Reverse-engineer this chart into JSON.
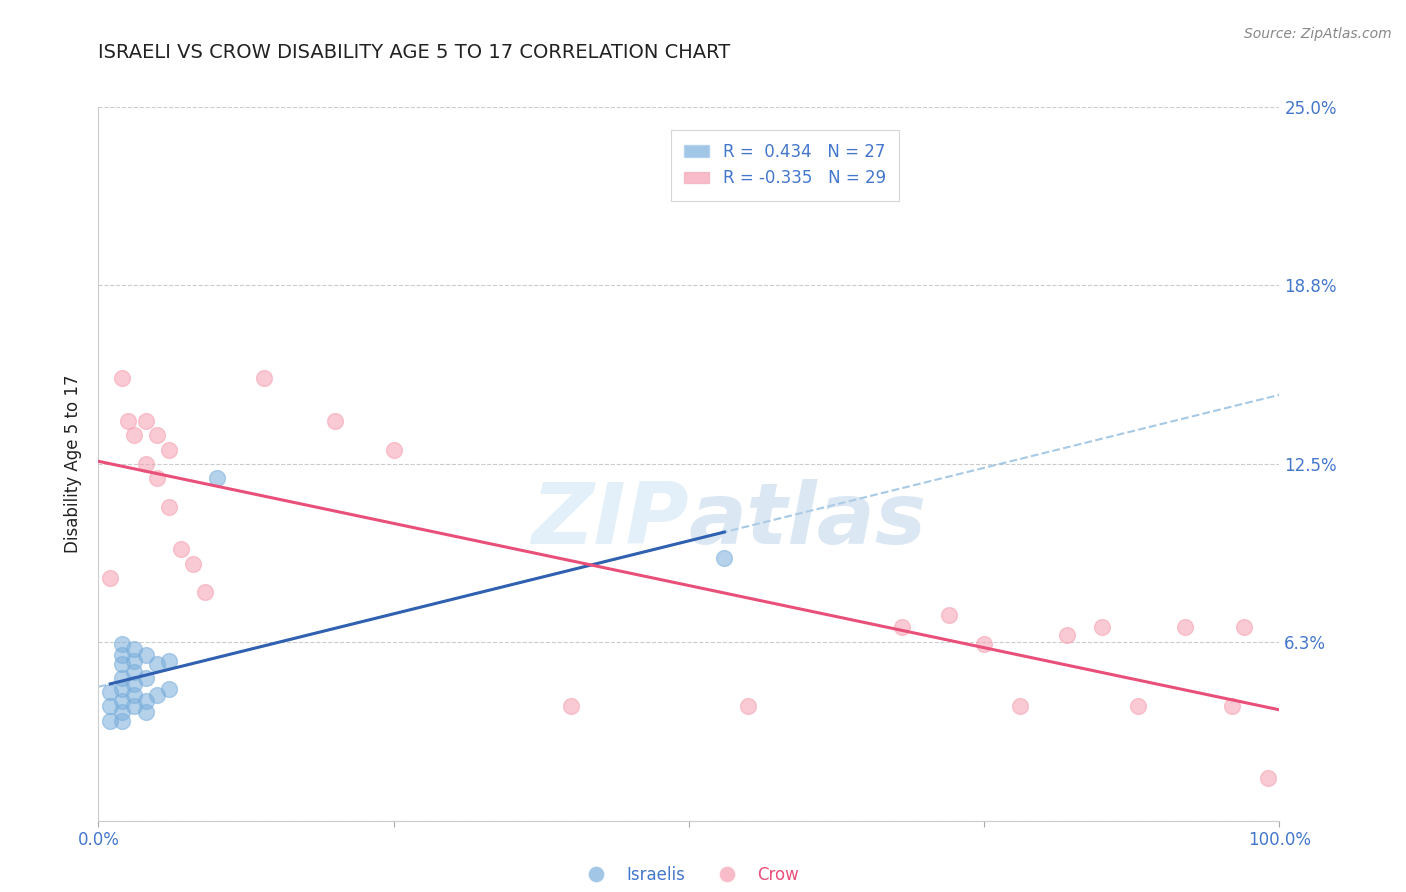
{
  "title": "ISRAELI VS CROW DISABILITY AGE 5 TO 17 CORRELATION CHART",
  "source": "Source: ZipAtlas.com",
  "ylabel": "Disability Age 5 to 17",
  "xmin": 0.0,
  "xmax": 1.0,
  "ymin": 0.0,
  "ymax": 0.25,
  "ytick_vals": [
    0.0,
    0.0625,
    0.125,
    0.1875,
    0.25
  ],
  "ytick_labels": [
    "",
    "6.3%",
    "12.5%",
    "18.8%",
    "25.0%"
  ],
  "xtick_vals": [
    0.0,
    0.25,
    0.5,
    0.75,
    1.0
  ],
  "xtick_labels": [
    "0.0%",
    "",
    "",
    "",
    "100.0%"
  ],
  "israelis_x": [
    0.01,
    0.01,
    0.01,
    0.02,
    0.02,
    0.02,
    0.02,
    0.02,
    0.02,
    0.02,
    0.02,
    0.03,
    0.03,
    0.03,
    0.03,
    0.03,
    0.03,
    0.04,
    0.04,
    0.04,
    0.04,
    0.05,
    0.05,
    0.06,
    0.06,
    0.1,
    0.53
  ],
  "israelis_y": [
    0.035,
    0.04,
    0.045,
    0.035,
    0.038,
    0.042,
    0.046,
    0.05,
    0.055,
    0.058,
    0.062,
    0.04,
    0.044,
    0.048,
    0.052,
    0.056,
    0.06,
    0.038,
    0.042,
    0.05,
    0.058,
    0.044,
    0.055,
    0.046,
    0.056,
    0.12,
    0.092
  ],
  "crow_x": [
    0.01,
    0.02,
    0.025,
    0.03,
    0.04,
    0.04,
    0.05,
    0.05,
    0.06,
    0.06,
    0.07,
    0.08,
    0.09,
    0.14,
    0.2,
    0.25,
    0.4,
    0.55,
    0.68,
    0.72,
    0.75,
    0.78,
    0.82,
    0.85,
    0.88,
    0.92,
    0.96,
    0.97,
    0.99
  ],
  "crow_y": [
    0.085,
    0.155,
    0.14,
    0.135,
    0.14,
    0.125,
    0.135,
    0.12,
    0.13,
    0.11,
    0.095,
    0.09,
    0.08,
    0.155,
    0.14,
    0.13,
    0.04,
    0.04,
    0.068,
    0.072,
    0.062,
    0.04,
    0.065,
    0.068,
    0.04,
    0.068,
    0.04,
    0.068,
    0.015
  ],
  "israeli_R": 0.434,
  "israeli_N": 27,
  "crow_R": -0.335,
  "crow_N": 29,
  "israeli_color": "#7aaedc",
  "crow_color": "#f5a0b0",
  "israeli_line_color": "#3060b0",
  "crow_line_color": "#e8507a",
  "israeli_dash_color": "#90bce0",
  "background_color": "#ffffff",
  "grid_color": "#cccccc",
  "title_color": "#222222",
  "axis_label_color": "#222222",
  "tick_label_color": "#4477cc",
  "source_color": "#888888",
  "legend_border_color": "#cccccc",
  "legend_text_color": "#4477cc"
}
